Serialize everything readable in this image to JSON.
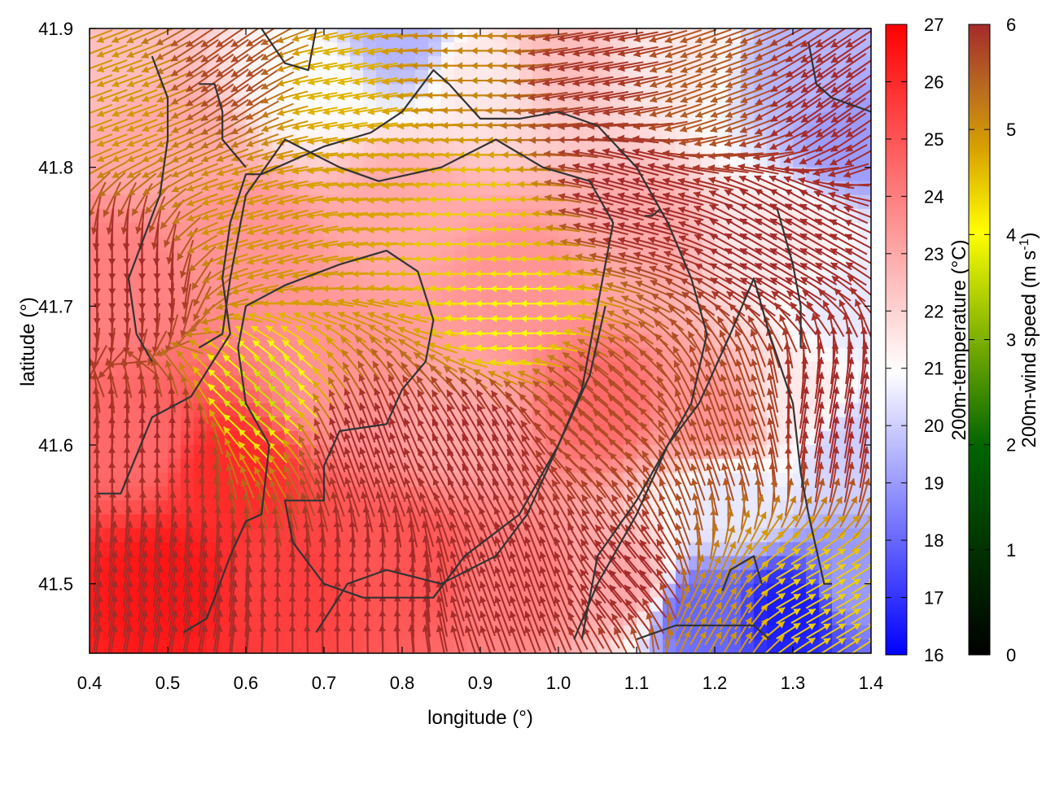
{
  "chart_data": {
    "type": "heatmap",
    "xlabel": "longitude (°)",
    "ylabel": "latitude (°)",
    "xlim": [
      0.4,
      1.4
    ],
    "ylim": [
      41.45,
      41.9
    ],
    "x_ticks": [
      "0.4",
      "0.5",
      "0.6",
      "0.7",
      "0.8",
      "0.9",
      "1.0",
      "1.1",
      "1.2",
      "1.3",
      "1.4"
    ],
    "y_ticks": [
      "41.5",
      "41.6",
      "41.7",
      "41.8",
      "41.9"
    ],
    "temperature_colorbar": {
      "label": "200m-temperature (°C)",
      "range": [
        16,
        27
      ],
      "ticks": [
        "16",
        "17",
        "18",
        "19",
        "20",
        "21",
        "22",
        "23",
        "24",
        "25",
        "26",
        "27"
      ],
      "colors": {
        "low": "#0000ff",
        "mid": "#ffffff",
        "high": "#ff0000"
      }
    },
    "wind_colorbar": {
      "label": "200m-wind speed (m s",
      "label_superscript": "-1",
      "label_close": ")",
      "range": [
        0,
        6
      ],
      "ticks": [
        "0",
        "1",
        "2",
        "3",
        "4",
        "5",
        "6"
      ],
      "colors": [
        "#000000",
        "#006400",
        "#7cb000",
        "#ffff00",
        "#d9a300",
        "#b86a20",
        "#a52a2a"
      ]
    },
    "temperature_field_anchors": [
      {
        "lon": 0.42,
        "lat": 41.88,
        "t": 22.5
      },
      {
        "lon": 0.5,
        "lat": 41.82,
        "t": 23.0
      },
      {
        "lon": 0.68,
        "lat": 41.86,
        "t": 21.0
      },
      {
        "lon": 0.8,
        "lat": 41.89,
        "t": 19.5
      },
      {
        "lon": 0.9,
        "lat": 41.87,
        "t": 21.5
      },
      {
        "lon": 1.0,
        "lat": 41.88,
        "t": 22.5
      },
      {
        "lon": 1.15,
        "lat": 41.88,
        "t": 21.5
      },
      {
        "lon": 1.3,
        "lat": 41.87,
        "t": 19.5
      },
      {
        "lon": 1.38,
        "lat": 41.82,
        "t": 19.0
      },
      {
        "lon": 0.42,
        "lat": 41.72,
        "t": 24.0
      },
      {
        "lon": 0.6,
        "lat": 41.75,
        "t": 23.5
      },
      {
        "lon": 0.8,
        "lat": 41.77,
        "t": 23.0
      },
      {
        "lon": 0.95,
        "lat": 41.72,
        "t": 23.5
      },
      {
        "lon": 1.1,
        "lat": 41.75,
        "t": 23.0
      },
      {
        "lon": 1.28,
        "lat": 41.75,
        "t": 21.5
      },
      {
        "lon": 1.38,
        "lat": 41.7,
        "t": 20.5
      },
      {
        "lon": 0.45,
        "lat": 41.6,
        "t": 24.5
      },
      {
        "lon": 0.58,
        "lat": 41.58,
        "t": 26.0
      },
      {
        "lon": 0.72,
        "lat": 41.64,
        "t": 23.5
      },
      {
        "lon": 0.88,
        "lat": 41.62,
        "t": 23.0
      },
      {
        "lon": 1.05,
        "lat": 41.63,
        "t": 24.5
      },
      {
        "lon": 1.2,
        "lat": 41.62,
        "t": 23.5
      },
      {
        "lon": 1.3,
        "lat": 41.63,
        "t": 21.5
      },
      {
        "lon": 1.38,
        "lat": 41.6,
        "t": 20.0
      },
      {
        "lon": 0.5,
        "lat": 41.5,
        "t": 26.5
      },
      {
        "lon": 0.65,
        "lat": 41.5,
        "t": 25.5
      },
      {
        "lon": 0.8,
        "lat": 41.51,
        "t": 25.0
      },
      {
        "lon": 0.95,
        "lat": 41.5,
        "t": 24.0
      },
      {
        "lon": 1.08,
        "lat": 41.5,
        "t": 23.0
      },
      {
        "lon": 1.18,
        "lat": 41.48,
        "t": 18.0
      },
      {
        "lon": 1.3,
        "lat": 41.48,
        "t": 16.5
      },
      {
        "lon": 1.38,
        "lat": 41.5,
        "t": 19.0
      },
      {
        "lon": 1.22,
        "lat": 41.56,
        "t": 20.5
      }
    ],
    "wind_field_anchors": [
      {
        "lon": 0.45,
        "lat": 41.85,
        "speed": 4.2,
        "dir": 200
      },
      {
        "lon": 0.58,
        "lat": 41.87,
        "speed": 5.5,
        "dir": 215
      },
      {
        "lon": 0.72,
        "lat": 41.86,
        "speed": 3.8,
        "dir": 190
      },
      {
        "lon": 0.88,
        "lat": 41.88,
        "speed": 4.5,
        "dir": 180
      },
      {
        "lon": 1.05,
        "lat": 41.87,
        "speed": 5.8,
        "dir": 190
      },
      {
        "lon": 1.2,
        "lat": 41.86,
        "speed": 5.2,
        "dir": 200
      },
      {
        "lon": 1.35,
        "lat": 41.85,
        "speed": 6.0,
        "dir": 215
      },
      {
        "lon": 0.45,
        "lat": 41.72,
        "speed": 6.0,
        "dir": 270
      },
      {
        "lon": 0.62,
        "lat": 41.76,
        "speed": 4.2,
        "dir": 195
      },
      {
        "lon": 0.75,
        "lat": 41.79,
        "speed": 4.0,
        "dir": 185
      },
      {
        "lon": 0.9,
        "lat": 41.76,
        "speed": 3.5,
        "dir": 180
      },
      {
        "lon": 0.95,
        "lat": 41.69,
        "speed": 3.0,
        "dir": 180
      },
      {
        "lon": 1.1,
        "lat": 41.78,
        "speed": 6.0,
        "dir": 165
      },
      {
        "lon": 1.28,
        "lat": 41.75,
        "speed": 6.0,
        "dir": 150
      },
      {
        "lon": 0.62,
        "lat": 41.63,
        "speed": 2.6,
        "dir": 140
      },
      {
        "lon": 0.75,
        "lat": 41.6,
        "speed": 6.0,
        "dir": 110
      },
      {
        "lon": 0.5,
        "lat": 41.6,
        "speed": 6.0,
        "dir": 90
      },
      {
        "lon": 0.9,
        "lat": 41.6,
        "speed": 6.0,
        "dir": 120
      },
      {
        "lon": 1.05,
        "lat": 41.63,
        "speed": 5.5,
        "dir": 140
      },
      {
        "lon": 1.22,
        "lat": 41.62,
        "speed": 5.5,
        "dir": 110
      },
      {
        "lon": 1.35,
        "lat": 41.62,
        "speed": 6.0,
        "dir": 80
      },
      {
        "lon": 0.5,
        "lat": 41.5,
        "speed": 6.0,
        "dir": 80
      },
      {
        "lon": 0.75,
        "lat": 41.5,
        "speed": 6.0,
        "dir": 90
      },
      {
        "lon": 0.95,
        "lat": 41.5,
        "speed": 6.0,
        "dir": 110
      },
      {
        "lon": 1.1,
        "lat": 41.5,
        "speed": 6.0,
        "dir": 130
      },
      {
        "lon": 1.2,
        "lat": 41.48,
        "speed": 4.2,
        "dir": 60
      },
      {
        "lon": 1.32,
        "lat": 41.49,
        "speed": 3.5,
        "dir": 30
      }
    ],
    "contours": [
      [
        [
          0.52,
          41.465
        ],
        [
          0.55,
          41.475
        ],
        [
          0.58,
          41.52
        ],
        [
          0.6,
          41.545
        ],
        [
          0.62,
          41.55
        ],
        [
          0.63,
          41.6
        ],
        [
          0.6,
          41.63
        ],
        [
          0.59,
          41.67
        ],
        [
          0.6,
          41.7
        ],
        [
          0.65,
          41.715
        ],
        [
          0.72,
          41.73
        ],
        [
          0.78,
          41.74
        ],
        [
          0.82,
          41.725
        ],
        [
          0.84,
          41.69
        ],
        [
          0.83,
          41.66
        ],
        [
          0.8,
          41.64
        ],
        [
          0.78,
          41.615
        ],
        [
          0.72,
          41.61
        ],
        [
          0.7,
          41.585
        ],
        [
          0.7,
          41.56
        ],
        [
          0.66,
          41.56
        ],
        [
          0.65,
          41.56
        ],
        [
          0.66,
          41.53
        ],
        [
          0.7,
          41.5
        ],
        [
          0.75,
          41.49
        ],
        [
          0.84,
          41.49
        ],
        [
          0.88,
          41.52
        ],
        [
          0.95,
          41.55
        ],
        [
          1.0,
          41.6
        ],
        [
          1.03,
          41.64
        ],
        [
          1.05,
          41.7
        ],
        [
          1.07,
          41.76
        ],
        [
          1.04,
          41.79
        ],
        [
          0.98,
          41.8
        ],
        [
          0.92,
          41.82
        ],
        [
          0.85,
          41.8
        ],
        [
          0.77,
          41.79
        ],
        [
          0.72,
          41.8
        ],
        [
          0.65,
          41.82
        ],
        [
          0.6,
          41.78
        ],
        [
          0.58,
          41.72
        ],
        [
          0.57,
          41.68
        ],
        [
          0.54,
          41.67
        ]
      ],
      [
        [
          0.41,
          41.565
        ],
        [
          0.44,
          41.565
        ],
        [
          0.48,
          41.62
        ],
        [
          0.53,
          41.635
        ],
        [
          0.58,
          41.68
        ],
        [
          0.57,
          41.72
        ],
        [
          0.58,
          41.76
        ],
        [
          0.6,
          41.795
        ],
        [
          0.62,
          41.795
        ],
        [
          0.66,
          41.805
        ],
        [
          0.7,
          41.815
        ],
        [
          0.76,
          41.825
        ],
        [
          0.8,
          41.84
        ],
        [
          0.84,
          41.87
        ],
        [
          0.86,
          41.86
        ],
        [
          0.9,
          41.835
        ],
        [
          0.95,
          41.835
        ],
        [
          1.0,
          41.84
        ],
        [
          1.05,
          41.83
        ],
        [
          1.1,
          41.8
        ],
        [
          1.14,
          41.76
        ],
        [
          1.17,
          41.72
        ],
        [
          1.19,
          41.68
        ],
        [
          1.17,
          41.63
        ],
        [
          1.14,
          41.6
        ],
        [
          1.1,
          41.56
        ],
        [
          1.05,
          41.52
        ],
        [
          1.03,
          41.46
        ]
      ],
      [
        [
          0.69,
          41.465
        ],
        [
          0.73,
          41.5
        ],
        [
          0.78,
          41.51
        ],
        [
          0.85,
          41.5
        ],
        [
          0.92,
          41.52
        ],
        [
          0.96,
          41.55
        ],
        [
          1.0,
          41.6
        ],
        [
          1.04,
          41.65
        ],
        [
          1.06,
          41.7
        ]
      ],
      [
        [
          1.02,
          41.46
        ],
        [
          1.05,
          41.5
        ],
        [
          1.1,
          41.55
        ],
        [
          1.14,
          41.6
        ],
        [
          1.18,
          41.63
        ],
        [
          1.22,
          41.68
        ],
        [
          1.25,
          41.72
        ],
        [
          1.27,
          41.68
        ],
        [
          1.3,
          41.63
        ],
        [
          1.31,
          41.58
        ],
        [
          1.32,
          41.55
        ],
        [
          1.34,
          41.5
        ],
        [
          1.35,
          41.5
        ]
      ],
      [
        [
          1.28,
          41.77
        ],
        [
          1.3,
          41.73
        ],
        [
          1.31,
          41.7
        ],
        [
          1.31,
          41.67
        ]
      ],
      [
        [
          0.48,
          41.66
        ],
        [
          0.46,
          41.68
        ],
        [
          0.45,
          41.72
        ],
        [
          0.49,
          41.78
        ],
        [
          0.5,
          41.82
        ],
        [
          0.5,
          41.85
        ],
        [
          0.48,
          41.88
        ]
      ],
      [
        [
          0.54,
          41.86
        ],
        [
          0.56,
          41.86
        ],
        [
          0.57,
          41.84
        ],
        [
          0.57,
          41.82
        ],
        [
          0.6,
          41.8
        ]
      ],
      [
        [
          0.62,
          41.9
        ],
        [
          0.65,
          41.875
        ],
        [
          0.68,
          41.87
        ],
        [
          0.69,
          41.9
        ]
      ],
      [
        [
          1.21,
          41.495
        ],
        [
          1.22,
          41.51
        ],
        [
          1.25,
          41.52
        ],
        [
          1.26,
          41.5
        ]
      ],
      [
        [
          1.1,
          41.46
        ],
        [
          1.15,
          41.47
        ],
        [
          1.2,
          41.47
        ],
        [
          1.25,
          41.47
        ],
        [
          1.27,
          41.46
        ]
      ],
      [
        [
          1.32,
          41.89
        ],
        [
          1.33,
          41.86
        ],
        [
          1.35,
          41.85
        ],
        [
          1.4,
          41.84
        ]
      ],
      [
        [
          1.11,
          41.765
        ],
        [
          1.12,
          41.765
        ],
        [
          1.13,
          41.77
        ]
      ]
    ]
  }
}
